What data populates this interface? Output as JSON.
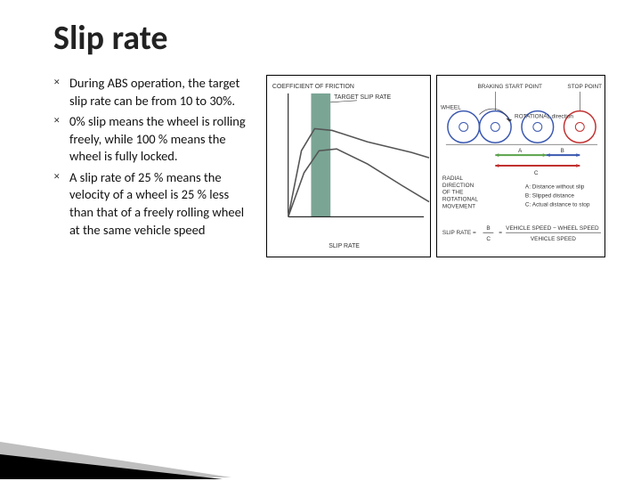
{
  "title": "Slip rate",
  "bullets": [
    "During ABS operation, the target slip rate can be from 10 to 30%.",
    " 0% slip means the wheel is rolling freely, while 100 % means the wheel is fully locked.",
    "A slip rate of 25 % means the velocity of a wheel is 25 % less than that of a freely rolling wheel at the same vehicle speed"
  ],
  "chart": {
    "type": "line",
    "y_label": "COEFFICIENT OF FRICTION",
    "x_label": "SLIP RATE",
    "target_label": "TARGET SLIP RATE",
    "band_color": "#6b9b89",
    "axis_color": "#000000",
    "curve1_color": "#555555",
    "curve2_color": "#555555",
    "curve1_points": [
      [
        0,
        145
      ],
      [
        15,
        70
      ],
      [
        30,
        45
      ],
      [
        50,
        47
      ],
      [
        90,
        60
      ],
      [
        140,
        72
      ],
      [
        160,
        78
      ]
    ],
    "curve2_points": [
      [
        0,
        145
      ],
      [
        18,
        95
      ],
      [
        35,
        70
      ],
      [
        55,
        68
      ],
      [
        90,
        85
      ],
      [
        130,
        110
      ],
      [
        160,
        128
      ]
    ],
    "band_x": [
      26,
      48
    ],
    "xlim": [
      0,
      170
    ],
    "ylim": [
      0,
      160
    ]
  },
  "wheel_diagram": {
    "labels": {
      "braking_start": "BRAKING START POINT",
      "stop_point": "STOP POINT",
      "wheel": "WHEEL",
      "rotational": "ROTATIONAL direction",
      "radial": "RADIAL DIRECTION OF THE ROTATIONAL MOVEMENT",
      "legend_a": "A: Distance without slip",
      "legend_b": "B: Slipped distance",
      "legend_c": "C: Actual distance to stop",
      "formula_left": "SLIP RATE =",
      "formula_num": "B",
      "formula_den": "C",
      "formula_right": "VEHICLE SPEED − WHEEL SPEED",
      "formula_right_den": "VEHICLE SPEED"
    },
    "colors": {
      "wheel_stroke": "#3a58b0",
      "stop_stroke": "#c23030",
      "bar_a": "#5aa24a",
      "bar_b": "#3a58b0",
      "bar_c": "#c23030"
    },
    "wheel_r": 18
  }
}
